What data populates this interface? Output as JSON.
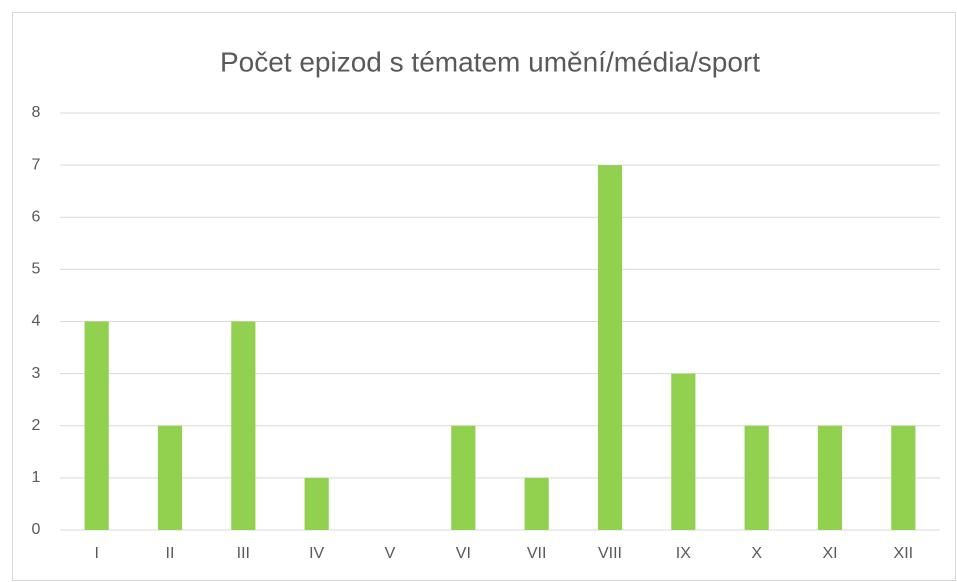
{
  "chart_data": {
    "type": "bar",
    "title": "Počet epizod s tématem umění/média/sport",
    "categories": [
      "I",
      "II",
      "III",
      "IV",
      "V",
      "VI",
      "VII",
      "VIII",
      "IX",
      "X",
      "XI",
      "XII"
    ],
    "values": [
      4,
      2,
      4,
      1,
      0,
      2,
      1,
      7,
      3,
      2,
      2,
      2
    ],
    "color": "#92d050",
    "ylim": [
      0,
      8
    ],
    "yticks": [
      0,
      1,
      2,
      3,
      4,
      5,
      6,
      7,
      8
    ],
    "grid": true
  }
}
